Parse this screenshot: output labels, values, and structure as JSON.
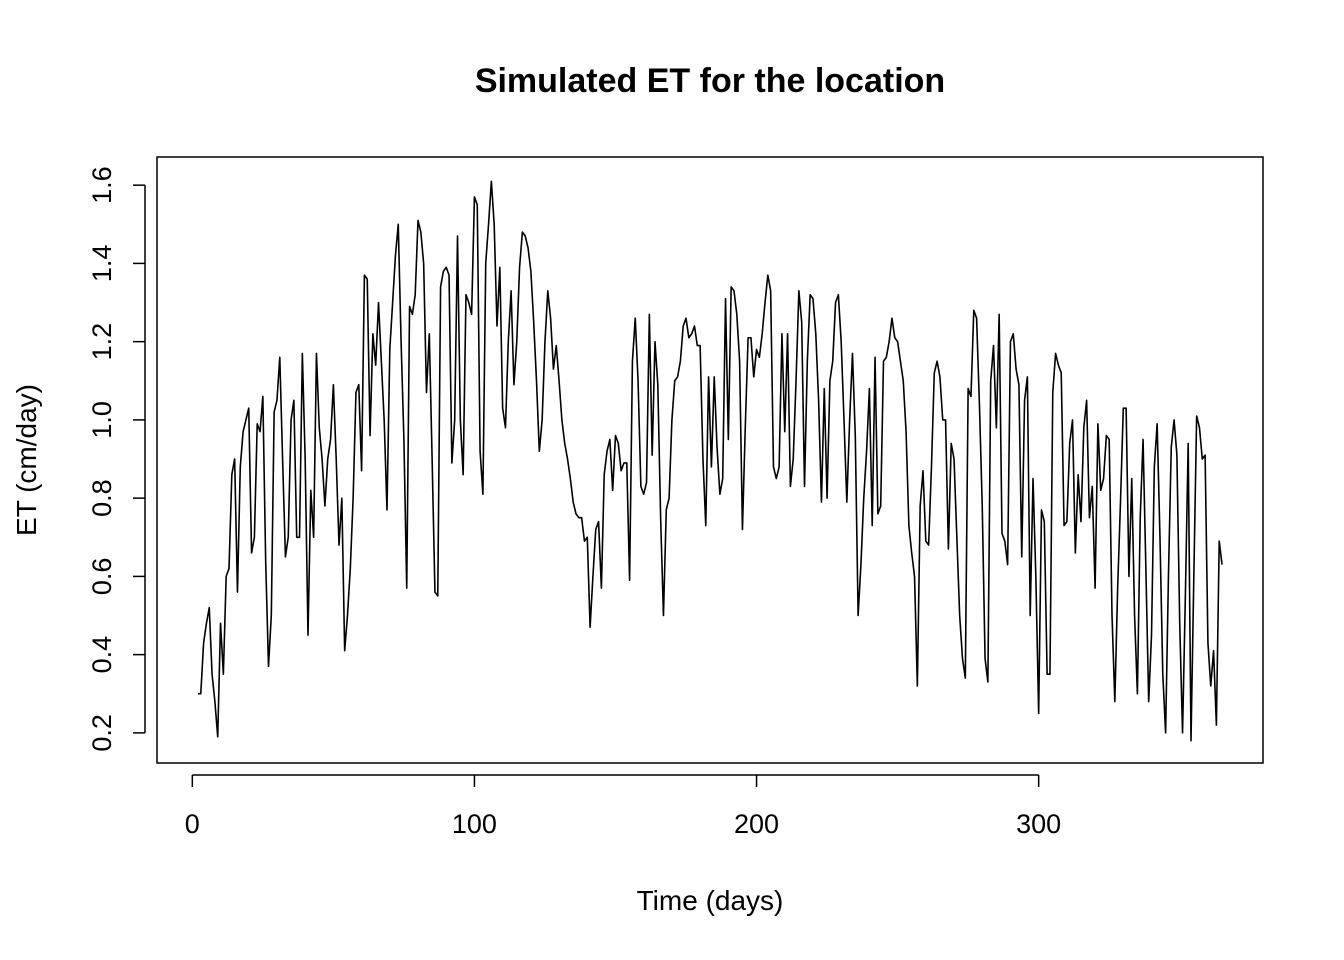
{
  "chart_data": {
    "type": "line",
    "title": "Simulated ET for the location",
    "xlabel": "Time (days)",
    "ylabel": "ET (cm/day)",
    "color": "#000000",
    "x": [
      2,
      3,
      4,
      5,
      6,
      7,
      8,
      9,
      10,
      11,
      12,
      13,
      14,
      15,
      16,
      17,
      18,
      19,
      20,
      21,
      22,
      23,
      24,
      25,
      26,
      27,
      28,
      29,
      30,
      31,
      32,
      33,
      34,
      35,
      36,
      37,
      38,
      39,
      40,
      41,
      42,
      43,
      44,
      45,
      46,
      47,
      48,
      49,
      50,
      51,
      52,
      53,
      54,
      55,
      56,
      57,
      58,
      59,
      60,
      61,
      62,
      63,
      64,
      65,
      66,
      67,
      68,
      69,
      70,
      71,
      72,
      73,
      74,
      75,
      76,
      77,
      78,
      79,
      80,
      81,
      82,
      83,
      84,
      85,
      86,
      87,
      88,
      89,
      90,
      91,
      92,
      93,
      94,
      95,
      96,
      97,
      98,
      99,
      100,
      101,
      102,
      103,
      104,
      105,
      106,
      107,
      108,
      109,
      110,
      111,
      112,
      113,
      114,
      115,
      116,
      117,
      118,
      119,
      120,
      121,
      122,
      123,
      124,
      125,
      126,
      127,
      128,
      129,
      130,
      131,
      132,
      133,
      134,
      135,
      136,
      137,
      138,
      139,
      140,
      141,
      142,
      143,
      144,
      145,
      146,
      147,
      148,
      149,
      150,
      151,
      152,
      153,
      154,
      155,
      156,
      157,
      158,
      159,
      160,
      161,
      162,
      163,
      164,
      165,
      166,
      167,
      168,
      169,
      170,
      171,
      172,
      173,
      174,
      175,
      176,
      177,
      178,
      179,
      180,
      181,
      182,
      183,
      184,
      185,
      186,
      187,
      188,
      189,
      190,
      191,
      192,
      193,
      194,
      195,
      196,
      197,
      198,
      199,
      200,
      201,
      202,
      203,
      204,
      205,
      206,
      207,
      208,
      209,
      210,
      211,
      212,
      213,
      214,
      215,
      216,
      217,
      218,
      219,
      220,
      221,
      222,
      223,
      224,
      225,
      226,
      227,
      228,
      229,
      230,
      231,
      232,
      233,
      234,
      235,
      236,
      237,
      238,
      239,
      240,
      241,
      242,
      243,
      244,
      245,
      246,
      247,
      248,
      249,
      250,
      251,
      252,
      253,
      254,
      255,
      256,
      257,
      258,
      259,
      260,
      261,
      262,
      263,
      264,
      265,
      266,
      267,
      268,
      269,
      270,
      271,
      272,
      273,
      274,
      275,
      276,
      277,
      278,
      279,
      280,
      281,
      282,
      283,
      284,
      285,
      286,
      287,
      288,
      289,
      290,
      291,
      292,
      293,
      294,
      295,
      296,
      297,
      298,
      299,
      300,
      301,
      302,
      303,
      304,
      305,
      306,
      307,
      308,
      309,
      310,
      311,
      312,
      313,
      314,
      315,
      316,
      317,
      318,
      319,
      320,
      321,
      322,
      323,
      324,
      325,
      326,
      327,
      328,
      329,
      330,
      331,
      332,
      333,
      334,
      335,
      336,
      337,
      338,
      339,
      340,
      341,
      342,
      343,
      344,
      345,
      346,
      347,
      348,
      349,
      350,
      351,
      352,
      353,
      354,
      355,
      356,
      357,
      358,
      359,
      360,
      361,
      362,
      363,
      364,
      365
    ],
    "values": [
      0.3,
      0.3,
      0.43,
      0.48,
      0.52,
      0.35,
      0.28,
      0.19,
      0.48,
      0.35,
      0.6,
      0.62,
      0.86,
      0.9,
      0.56,
      0.88,
      0.97,
      1.0,
      1.03,
      0.66,
      0.7,
      0.99,
      0.97,
      1.06,
      0.64,
      0.37,
      0.5,
      1.02,
      1.05,
      1.16,
      0.9,
      0.65,
      0.7,
      1.0,
      1.05,
      0.7,
      0.7,
      1.17,
      0.9,
      0.45,
      0.82,
      0.7,
      1.17,
      0.98,
      0.9,
      0.78,
      0.9,
      0.95,
      1.09,
      0.9,
      0.68,
      0.8,
      0.41,
      0.5,
      0.62,
      0.8,
      1.07,
      1.09,
      0.87,
      1.37,
      1.36,
      0.96,
      1.22,
      1.14,
      1.3,
      1.15,
      1.0,
      0.77,
      1.18,
      1.3,
      1.42,
      1.5,
      1.2,
      0.95,
      0.57,
      1.29,
      1.27,
      1.32,
      1.51,
      1.48,
      1.4,
      1.07,
      1.22,
      0.9,
      0.56,
      0.55,
      1.34,
      1.38,
      1.39,
      1.37,
      0.89,
      1.0,
      1.47,
      1.0,
      0.86,
      1.32,
      1.3,
      1.27,
      1.57,
      1.55,
      0.92,
      0.81,
      1.4,
      1.5,
      1.61,
      1.5,
      1.24,
      1.39,
      1.03,
      0.98,
      1.2,
      1.33,
      1.09,
      1.2,
      1.39,
      1.48,
      1.47,
      1.44,
      1.38,
      1.25,
      1.1,
      0.92,
      1.0,
      1.2,
      1.33,
      1.26,
      1.13,
      1.19,
      1.1,
      1.0,
      0.94,
      0.9,
      0.85,
      0.79,
      0.76,
      0.75,
      0.75,
      0.69,
      0.7,
      0.47,
      0.6,
      0.72,
      0.74,
      0.57,
      0.86,
      0.92,
      0.95,
      0.82,
      0.96,
      0.94,
      0.87,
      0.89,
      0.89,
      0.59,
      1.15,
      1.26,
      1.1,
      0.83,
      0.81,
      0.84,
      1.27,
      0.91,
      1.2,
      1.09,
      0.75,
      0.5,
      0.77,
      0.8,
      1.0,
      1.1,
      1.11,
      1.15,
      1.24,
      1.26,
      1.21,
      1.22,
      1.24,
      1.19,
      1.19,
      0.9,
      0.73,
      1.11,
      0.88,
      1.11,
      0.93,
      0.81,
      0.85,
      1.31,
      0.95,
      1.34,
      1.33,
      1.27,
      1.15,
      0.72,
      0.98,
      1.21,
      1.21,
      1.11,
      1.18,
      1.16,
      1.22,
      1.3,
      1.37,
      1.33,
      0.88,
      0.85,
      0.88,
      1.22,
      0.97,
      1.22,
      0.83,
      0.9,
      1.1,
      1.33,
      1.25,
      0.83,
      1.15,
      1.32,
      1.31,
      1.22,
      1.05,
      0.79,
      1.08,
      0.8,
      1.1,
      1.15,
      1.3,
      1.32,
      1.2,
      1.0,
      0.79,
      1.0,
      1.17,
      0.96,
      0.5,
      0.63,
      0.8,
      0.92,
      1.08,
      0.73,
      1.16,
      0.76,
      0.78,
      1.15,
      1.16,
      1.2,
      1.26,
      1.21,
      1.2,
      1.15,
      1.1,
      0.97,
      0.73,
      0.66,
      0.6,
      0.32,
      0.78,
      0.87,
      0.69,
      0.68,
      0.88,
      1.12,
      1.15,
      1.11,
      1.0,
      1.0,
      0.67,
      0.94,
      0.9,
      0.7,
      0.5,
      0.39,
      0.34,
      1.08,
      1.06,
      1.28,
      1.26,
      1.04,
      0.78,
      0.39,
      0.33,
      1.1,
      1.19,
      0.98,
      1.27,
      0.71,
      0.69,
      0.63,
      1.2,
      1.22,
      1.13,
      1.09,
      0.65,
      1.05,
      1.11,
      0.5,
      0.85,
      0.6,
      0.25,
      0.77,
      0.74,
      0.35,
      0.35,
      1.07,
      1.17,
      1.14,
      1.12,
      0.73,
      0.74,
      0.94,
      1.0,
      0.66,
      0.86,
      0.74,
      0.98,
      1.05,
      0.75,
      0.83,
      0.57,
      0.99,
      0.82,
      0.85,
      0.96,
      0.95,
      0.5,
      0.28,
      0.57,
      0.79,
      1.03,
      1.03,
      0.6,
      0.85,
      0.5,
      0.3,
      0.75,
      0.95,
      0.62,
      0.28,
      0.45,
      0.88,
      0.99,
      0.7,
      0.35,
      0.2,
      0.6,
      0.93,
      1.0,
      0.91,
      0.48,
      0.2,
      0.55,
      0.94,
      0.18,
      0.6,
      1.01,
      0.98,
      0.9,
      0.91,
      0.43,
      0.32,
      0.41,
      0.22,
      0.69,
      0.63
    ],
    "xlim": [
      -12.52,
      379.52
    ],
    "xticks": [
      0,
      100,
      200,
      300
    ],
    "ylim": [
      0.123,
      1.672
    ],
    "yticks": [
      0.2,
      0.4,
      0.6,
      0.8,
      {
        "value": 1,
        "label": "1.0"
      },
      1.2,
      1.4,
      1.6
    ]
  }
}
